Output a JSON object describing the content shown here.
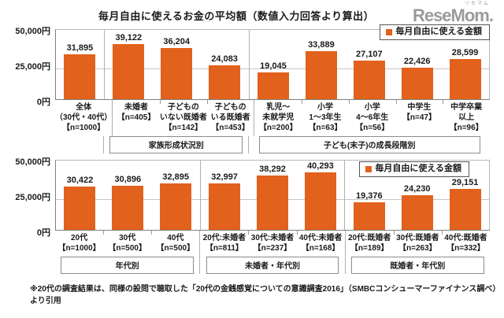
{
  "header": {
    "title": "毎月自由に使えるお金の平均額（数値入力回答より算出）",
    "logo_text": "ReseMom.",
    "logo_ruby": "リセマム"
  },
  "colors": {
    "bar": "#e2611c",
    "legend_square": "#e2611c",
    "axis": "#7f7f7f",
    "grid": "#c6c6c6",
    "logo_gray": "#9a9a9a"
  },
  "footnote": "※20代の調査結果は、同様の設問で聴取した「20代の金銭感覚についての意識調査2016」（SMBCコンシューマーファイナンス調べ）より引用",
  "chart_data": [
    {
      "type": "bar",
      "legend": "毎月自由に使える金額",
      "legend_position": "top-right",
      "ylabel": "",
      "ylim": [
        0,
        50000
      ],
      "yticks": [
        "50,000円",
        "25,000円",
        "0円"
      ],
      "grid": true,
      "sections": [
        {
          "group_label": "",
          "bars": [
            {
              "category": "全体（30代・40代）【n=1000】",
              "label_lines": [
                "全体",
                "（30代・40代）",
                "【n=1000】"
              ],
              "value": 31895,
              "value_label": "31,895"
            }
          ]
        },
        {
          "group_label": "家族形成状況別",
          "bars": [
            {
              "category": "未婚者【n=405】",
              "label_lines": [
                "未婚者",
                "【n=405】"
              ],
              "value": 39122,
              "value_label": "39,122"
            },
            {
              "category": "子どものいない既婚者【n=142】",
              "label_lines": [
                "子どもの",
                "いない既婚者",
                "【n=142】"
              ],
              "value": 36204,
              "value_label": "36,204"
            },
            {
              "category": "子どものいる既婚者【n=453】",
              "label_lines": [
                "子どもの",
                "いる既婚者",
                "【n=453】"
              ],
              "value": 24083,
              "value_label": "24,083"
            }
          ]
        },
        {
          "group_label": "子ども(末子)の成長段階別",
          "bars": [
            {
              "category": "乳児～未就学児【n=200】",
              "label_lines": [
                "乳児～",
                "未就学児",
                "【n=200】"
              ],
              "value": 19045,
              "value_label": "19,045"
            },
            {
              "category": "小学1～3年生【n=63】",
              "label_lines": [
                "小学",
                "1～3年生",
                "【n=63】"
              ],
              "value": 33889,
              "value_label": "33,889"
            },
            {
              "category": "小学4～6年生【n=56】",
              "label_lines": [
                "小学",
                "4～6年生",
                "【n=56】"
              ],
              "value": 27107,
              "value_label": "27,107"
            },
            {
              "category": "中学生【n=47】",
              "label_lines": [
                "中学生",
                "【n=47】"
              ],
              "value": 22426,
              "value_label": "22,426"
            },
            {
              "category": "中学卒業以上【n=96】",
              "label_lines": [
                "中学卒業",
                "以上",
                "【n=96】"
              ],
              "value": 28599,
              "value_label": "28,599"
            }
          ]
        }
      ]
    },
    {
      "type": "bar",
      "legend": "毎月自由に使える金額",
      "legend_position": "top-right",
      "ylabel": "",
      "ylim": [
        0,
        50000
      ],
      "yticks": [
        "50,000円",
        "25,000円",
        "0円"
      ],
      "grid": true,
      "sections": [
        {
          "group_label": "年代別",
          "bars": [
            {
              "category": "20代【n=1000】",
              "label_lines": [
                "20代",
                "【n=1000】"
              ],
              "value": 30422,
              "value_label": "30,422"
            },
            {
              "category": "30代【n=500】",
              "label_lines": [
                "30代",
                "【n=500】"
              ],
              "value": 30896,
              "value_label": "30,896"
            },
            {
              "category": "40代【n=500】",
              "label_lines": [
                "40代",
                "【n=500】"
              ],
              "value": 32895,
              "value_label": "32,895"
            }
          ]
        },
        {
          "group_label": "未婚者・年代別",
          "bars": [
            {
              "category": "20代:未婚者【n=811】",
              "label_lines": [
                "20代:未婚者",
                "【n=811】"
              ],
              "value": 32997,
              "value_label": "32,997"
            },
            {
              "category": "30代:未婚者【n=237】",
              "label_lines": [
                "30代:未婚者",
                "【n=237】"
              ],
              "value": 38292,
              "value_label": "38,292"
            },
            {
              "category": "40代:未婚者【n=168】",
              "label_lines": [
                "40代:未婚者",
                "【n=168】"
              ],
              "value": 40293,
              "value_label": "40,293"
            }
          ]
        },
        {
          "group_label": "既婚者・年代別",
          "bars": [
            {
              "category": "20代:既婚者【n=189】",
              "label_lines": [
                "20代:既婚者",
                "【n=189】"
              ],
              "value": 19376,
              "value_label": "19,376"
            },
            {
              "category": "30代:既婚者【n=263】",
              "label_lines": [
                "30代:既婚者",
                "【n=263】"
              ],
              "value": 24230,
              "value_label": "24,230"
            },
            {
              "category": "40代:既婚者【n=332】",
              "label_lines": [
                "40代:既婚者",
                "【n=332】"
              ],
              "value": 29151,
              "value_label": "29,151"
            }
          ]
        }
      ]
    }
  ]
}
